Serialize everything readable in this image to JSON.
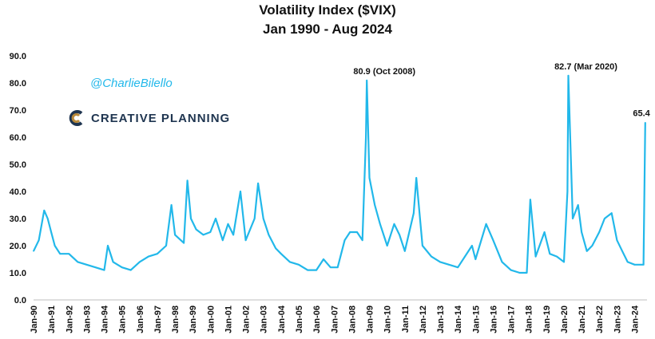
{
  "header": {
    "title": "Volatility Index ($VIX)",
    "subtitle": "Jan 1990 - Aug 2024"
  },
  "watermark": {
    "handle": "@CharlieBilello",
    "brand": "CREATIVE PLANNING"
  },
  "colors": {
    "line": "#22b8ea",
    "brand": "#1f3550",
    "logo_accent": "#b98a3b"
  },
  "chart_data": {
    "type": "line",
    "title": "Volatility Index ($VIX)",
    "subtitle": "Jan 1990 - Aug 2024",
    "xlabel": "",
    "ylabel": "",
    "ylim": [
      0,
      90
    ],
    "yticks": [
      "0.0",
      "10.0",
      "20.0",
      "30.0",
      "40.0",
      "50.0",
      "60.0",
      "70.0",
      "80.0",
      "90.0"
    ],
    "grid": false,
    "xticks": [
      "Jan-90",
      "Jan-91",
      "Jan-92",
      "Jan-93",
      "Jan-94",
      "Jan-95",
      "Jan-96",
      "Jan-97",
      "Jan-98",
      "Jan-99",
      "Jan-00",
      "Jan-01",
      "Jan-02",
      "Jan-03",
      "Jan-04",
      "Jan-05",
      "Jan-06",
      "Jan-07",
      "Jan-08",
      "Jan-09",
      "Jan-10",
      "Jan-11",
      "Jan-12",
      "Jan-13",
      "Jan-14",
      "Jan-15",
      "Jan-16",
      "Jan-17",
      "Jan-18",
      "Jan-19",
      "Jan-20",
      "Jan-21",
      "Jan-22",
      "Jan-23",
      "Jan-24"
    ],
    "series": [
      {
        "x": [
          1990.0,
          1990.3,
          1990.6,
          1990.8,
          1991.0,
          1991.2,
          1991.5,
          1992.0,
          1992.5,
          1993.0,
          1993.5,
          1994.0,
          1994.2,
          1994.5,
          1995.0,
          1995.5,
          1996.0,
          1996.5,
          1997.0,
          1997.5,
          1997.8,
          1998.0,
          1998.5,
          1998.7,
          1998.9,
          1999.2,
          1999.6,
          2000.0,
          2000.3,
          2000.7,
          2001.0,
          2001.3,
          2001.7,
          2002.0,
          2002.5,
          2002.7,
          2003.0,
          2003.3,
          2003.7,
          2004.0,
          2004.5,
          2005.0,
          2005.5,
          2006.0,
          2006.4,
          2006.8,
          2007.2,
          2007.6,
          2007.9,
          2008.3,
          2008.6,
          2008.8,
          2008.85,
          2009.0,
          2009.3,
          2009.6,
          2010.0,
          2010.4,
          2010.7,
          2011.0,
          2011.5,
          2011.65,
          2012.0,
          2012.5,
          2013.0,
          2013.5,
          2014.0,
          2014.8,
          2015.0,
          2015.6,
          2016.0,
          2016.5,
          2017.0,
          2017.5,
          2017.9,
          2018.1,
          2018.4,
          2018.9,
          2019.2,
          2019.6,
          2020.0,
          2020.2,
          2020.25,
          2020.5,
          2020.8,
          2021.0,
          2021.3,
          2021.6,
          2022.0,
          2022.3,
          2022.7,
          2023.0,
          2023.3,
          2023.6,
          2024.0,
          2024.3,
          2024.5,
          2024.6
        ],
        "values": [
          18,
          22,
          33,
          30,
          25,
          20,
          17,
          17,
          14,
          13,
          12,
          11,
          20,
          14,
          12,
          11,
          14,
          16,
          17,
          20,
          35,
          24,
          21,
          44,
          30,
          26,
          24,
          25,
          30,
          22,
          28,
          24,
          40,
          22,
          30,
          43,
          30,
          24,
          19,
          17,
          14,
          13,
          11,
          11,
          15,
          12,
          12,
          22,
          25,
          25,
          22,
          60,
          80.9,
          45,
          35,
          28,
          20,
          28,
          24,
          18,
          32,
          45,
          20,
          16,
          14,
          13,
          12,
          20,
          15,
          28,
          22,
          14,
          11,
          10,
          10,
          37,
          16,
          25,
          17,
          16,
          14,
          40,
          82.7,
          30,
          35,
          25,
          18,
          20,
          25,
          30,
          32,
          22,
          18,
          14,
          13,
          13,
          13,
          65.4
        ]
      }
    ],
    "annotations": [
      {
        "label": "80.9",
        "note": "(Oct 2008)",
        "x": 2008.85,
        "y": 80.9
      },
      {
        "label": "82.7",
        "note": "(Mar 2020)",
        "x": 2020.25,
        "y": 82.7
      },
      {
        "label": "65.4",
        "note": "",
        "x": 2024.6,
        "y": 65.4
      }
    ]
  }
}
